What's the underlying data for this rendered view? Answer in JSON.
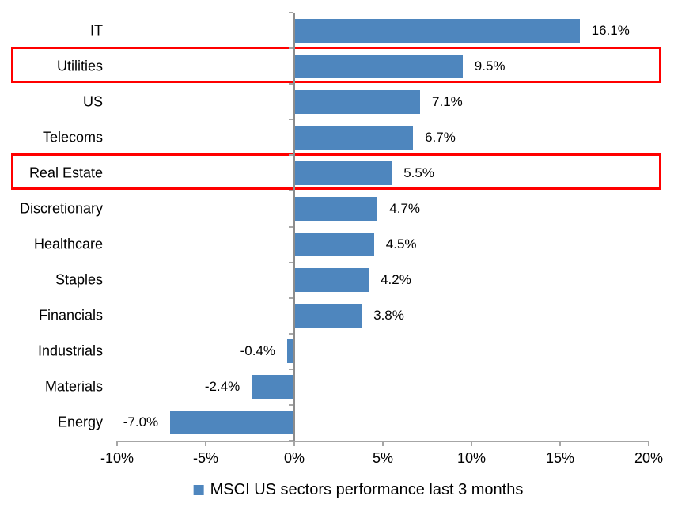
{
  "chart_data": {
    "type": "bar",
    "orientation": "horizontal",
    "title": "",
    "categories": [
      "IT",
      "Utilities",
      "US",
      "Telecoms",
      "Real Estate",
      "Discretionary",
      "Healthcare",
      "Staples",
      "Financials",
      "Industrials",
      "Materials",
      "Energy"
    ],
    "values": [
      16.1,
      9.5,
      7.1,
      6.7,
      5.5,
      4.7,
      4.5,
      4.2,
      3.8,
      -0.4,
      -2.4,
      -7.0
    ],
    "value_labels": [
      "16.1%",
      "9.5%",
      "7.1%",
      "6.7%",
      "5.5%",
      "4.7%",
      "4.5%",
      "4.2%",
      "3.8%",
      "-0.4%",
      "-2.4%",
      "-7.0%"
    ],
    "highlighted_categories": [
      "Utilities",
      "Real Estate"
    ],
    "x_axis": {
      "min": -10,
      "max": 20,
      "step": 5,
      "tick_labels": [
        "-10%",
        "-5%",
        "0%",
        "5%",
        "10%",
        "15%",
        "20%"
      ]
    },
    "grid": false,
    "legend": {
      "label": "MSCI US sectors performance last 3 months",
      "position": "bottom-center"
    },
    "colors": {
      "bar": "#4E86BE",
      "highlight_box": "#FF0000",
      "axis_line": "#A6A6A6",
      "zero_line": "#8C8C8C",
      "text": "#000000"
    }
  }
}
